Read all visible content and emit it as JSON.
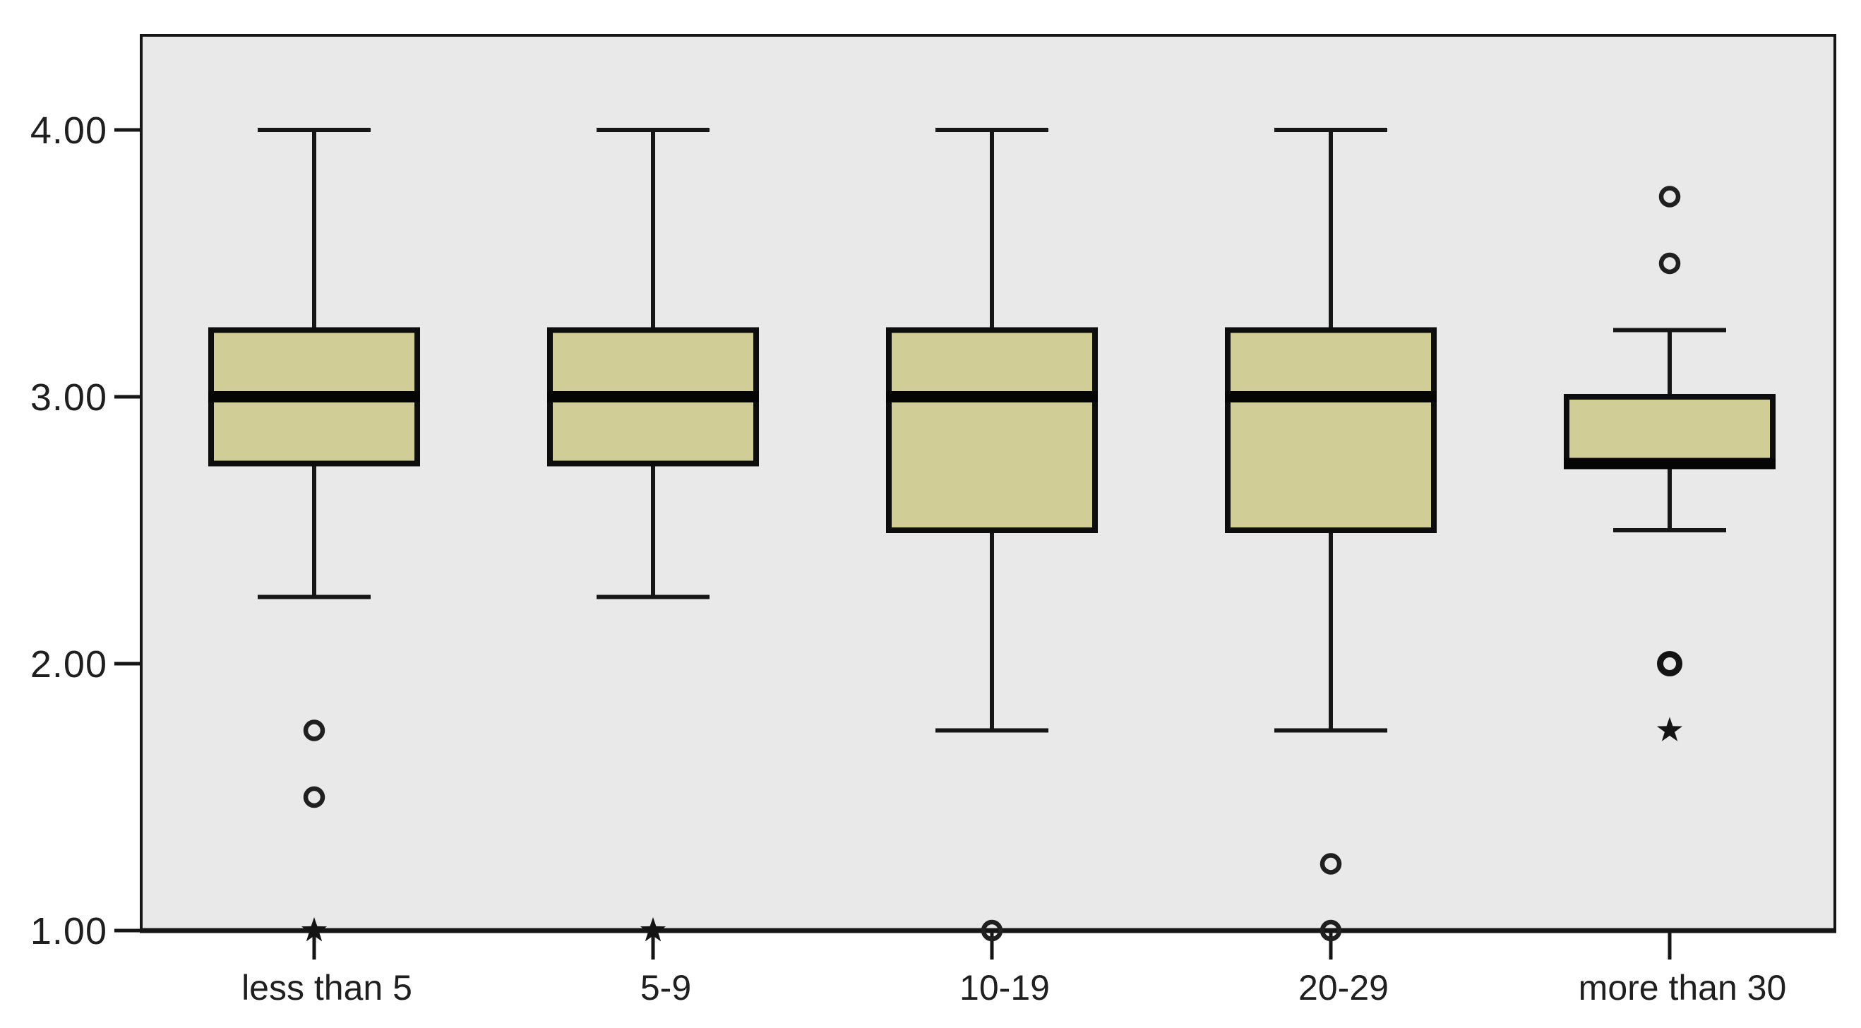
{
  "figure": {
    "kind": "boxplot-figure",
    "title": ""
  },
  "colors": {
    "box_fill": "#d0cd97",
    "line": "#161616",
    "box_border": "#0d0d0d",
    "median": "#050505",
    "plot_background": "#e9e9e9",
    "page_background": "#ffffff",
    "text": "#1f1f1f"
  },
  "chart_data": {
    "type": "boxplot",
    "title": "",
    "xlabel": "",
    "ylabel": "",
    "grid": false,
    "legend": "none",
    "y_axis": {
      "min": 1.0,
      "max": 4.35,
      "ticks": [
        {
          "value": 4.0,
          "label": "4.00"
        },
        {
          "value": 3.0,
          "label": "3.00"
        },
        {
          "value": 2.0,
          "label": "2.00"
        },
        {
          "value": 1.0,
          "label": "1.00"
        }
      ]
    },
    "categories": [
      "less than 5",
      "5-9",
      "10-19",
      "20-29",
      "more than 30"
    ],
    "series": [
      {
        "category": "less than 5",
        "whisker_low": 2.25,
        "q1": 2.75,
        "median": 3.0,
        "q3": 3.25,
        "whisker_high": 4.0,
        "outliers": [
          {
            "value": 1.75,
            "marker": "circle"
          },
          {
            "value": 1.5,
            "marker": "circle"
          },
          {
            "value": 1.0,
            "marker": "star"
          }
        ]
      },
      {
        "category": "5-9",
        "whisker_low": 2.25,
        "q1": 2.75,
        "median": 3.0,
        "q3": 3.25,
        "whisker_high": 4.0,
        "outliers": [
          {
            "value": 1.0,
            "marker": "star"
          }
        ]
      },
      {
        "category": "10-19",
        "whisker_low": 1.75,
        "q1": 2.5,
        "median": 3.0,
        "q3": 3.25,
        "whisker_high": 4.0,
        "outliers": [
          {
            "value": 1.0,
            "marker": "circle"
          }
        ]
      },
      {
        "category": "20-29",
        "whisker_low": 1.75,
        "q1": 2.5,
        "median": 3.0,
        "q3": 3.25,
        "whisker_high": 4.0,
        "outliers": [
          {
            "value": 1.25,
            "marker": "circle"
          },
          {
            "value": 1.0,
            "marker": "circle"
          }
        ]
      },
      {
        "category": "more than 30",
        "whisker_low": 2.5,
        "q1": 2.75,
        "median": 2.75,
        "q3": 3.0,
        "whisker_high": 3.25,
        "outliers": [
          {
            "value": 3.75,
            "marker": "circle"
          },
          {
            "value": 3.5,
            "marker": "circle"
          },
          {
            "value": 2.0,
            "marker": "circle-bold"
          },
          {
            "value": 1.75,
            "marker": "star"
          }
        ]
      }
    ]
  }
}
